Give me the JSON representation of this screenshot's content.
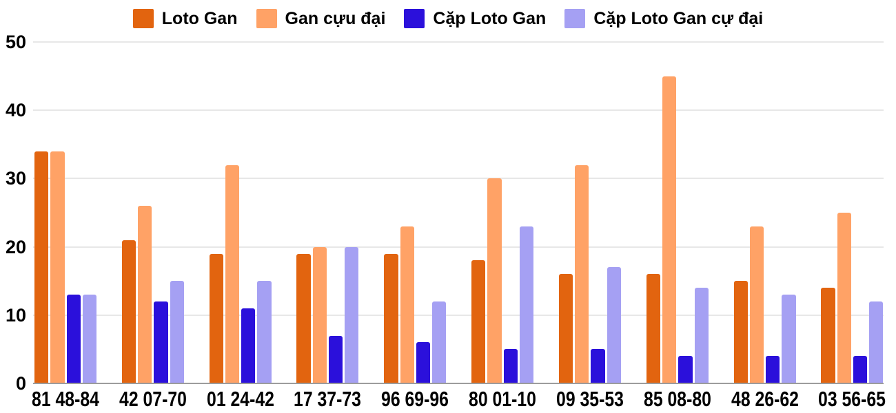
{
  "chart_data": {
    "type": "bar",
    "title": "",
    "xlabel": "",
    "ylabel": "",
    "categories": [
      "81 48-84",
      "42 07-70",
      "01 24-42",
      "17 37-73",
      "96 69-96",
      "80 01-10",
      "09 35-53",
      "85 08-80",
      "48 26-62",
      "03 56-65"
    ],
    "series": [
      {
        "name": "Loto Gan",
        "color": "#E2640F",
        "values": [
          34,
          21,
          19,
          19,
          19,
          18,
          16,
          16,
          15,
          14
        ]
      },
      {
        "name": "Gan cựu đại",
        "color": "#FFA266",
        "values": [
          34,
          26,
          32,
          20,
          23,
          30,
          32,
          45,
          23,
          25
        ]
      },
      {
        "name": "Cặp Loto Gan",
        "color": "#2B10DB",
        "values": [
          13,
          12,
          11,
          7,
          6,
          5,
          5,
          4,
          4,
          4
        ]
      },
      {
        "name": "Cặp Loto Gan cự đại",
        "color": "#A5A0F3",
        "values": [
          13,
          15,
          15,
          20,
          12,
          23,
          17,
          14,
          13,
          12
        ]
      }
    ],
    "y_ticks": [
      0,
      10,
      20,
      30,
      40,
      50
    ],
    "ylim": [
      0,
      50
    ],
    "legend_position": "top",
    "grid": true,
    "colors": {
      "background": "#FFFFFF",
      "gridline": "#E7E7E7",
      "axis_line": "#9C9C9C",
      "text": "#000000"
    }
  }
}
